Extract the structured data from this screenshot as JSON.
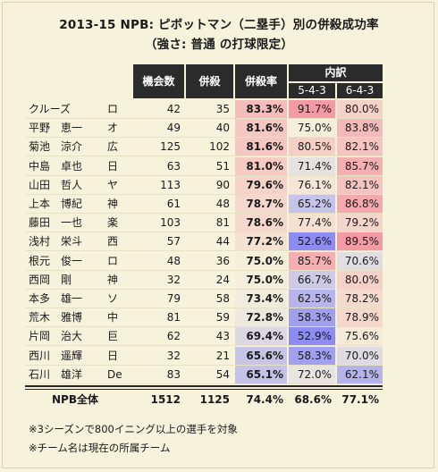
{
  "title_line1": "2013-15 NPB: ピボットマン（二塁手）別の併殺成功率",
  "title_line2": "（強さ: 普通 の打球限定）",
  "chart_data": {
    "type": "table",
    "columns": {
      "opportunities": "機会数",
      "double_plays": "併殺",
      "rate": "併殺率",
      "breakdown": "内訳",
      "sub_543": "5-4-3",
      "sub_643": "6-4-3"
    },
    "rows": [
      {
        "name": "クルーズ",
        "team": "ロ",
        "opp": 42,
        "dp": 35,
        "rate": "83.3%",
        "r543": "91.7%",
        "r643": "80.0%",
        "rate_v": 83.3,
        "r543_v": 91.7,
        "r643_v": 80.0
      },
      {
        "name": "平野　恵一",
        "team": "オ",
        "opp": 49,
        "dp": 40,
        "rate": "81.6%",
        "r543": "75.0%",
        "r643": "83.8%",
        "rate_v": 81.6,
        "r543_v": 75.0,
        "r643_v": 83.8
      },
      {
        "name": "菊池　涼介",
        "team": "広",
        "opp": 125,
        "dp": 102,
        "rate": "81.6%",
        "r543": "80.5%",
        "r643": "82.1%",
        "rate_v": 81.6,
        "r543_v": 80.5,
        "r643_v": 82.1
      },
      {
        "name": "中島　卓也",
        "team": "日",
        "opp": 63,
        "dp": 51,
        "rate": "81.0%",
        "r543": "71.4%",
        "r643": "85.7%",
        "rate_v": 81.0,
        "r543_v": 71.4,
        "r643_v": 85.7
      },
      {
        "name": "山田　哲人",
        "team": "ヤ",
        "opp": 113,
        "dp": 90,
        "rate": "79.6%",
        "r543": "76.1%",
        "r643": "82.1%",
        "rate_v": 79.6,
        "r543_v": 76.1,
        "r643_v": 82.1
      },
      {
        "name": "上本　博紀",
        "team": "神",
        "opp": 61,
        "dp": 48,
        "rate": "78.7%",
        "r543": "65.2%",
        "r643": "86.8%",
        "rate_v": 78.7,
        "r543_v": 65.2,
        "r643_v": 86.8
      },
      {
        "name": "藤田　一也",
        "team": "楽",
        "opp": 103,
        "dp": 81,
        "rate": "78.6%",
        "r543": "77.4%",
        "r643": "79.2%",
        "rate_v": 78.6,
        "r543_v": 77.4,
        "r643_v": 79.2
      },
      {
        "name": "浅村　栄斗",
        "team": "西",
        "opp": 57,
        "dp": 44,
        "rate": "77.2%",
        "r543": "52.6%",
        "r643": "89.5%",
        "rate_v": 77.2,
        "r543_v": 52.6,
        "r643_v": 89.5
      },
      {
        "name": "根元　俊一",
        "team": "ロ",
        "opp": 48,
        "dp": 36,
        "rate": "75.0%",
        "r543": "85.7%",
        "r643": "70.6%",
        "rate_v": 75.0,
        "r543_v": 85.7,
        "r643_v": 70.6
      },
      {
        "name": "西岡　剛",
        "team": "神",
        "opp": 32,
        "dp": 24,
        "rate": "75.0%",
        "r543": "66.7%",
        "r643": "80.0%",
        "rate_v": 75.0,
        "r543_v": 66.7,
        "r643_v": 80.0
      },
      {
        "name": "本多　雄一",
        "team": "ソ",
        "opp": 79,
        "dp": 58,
        "rate": "73.4%",
        "r543": "62.5%",
        "r643": "78.2%",
        "rate_v": 73.4,
        "r543_v": 62.5,
        "r643_v": 78.2
      },
      {
        "name": "荒木　雅博",
        "team": "中",
        "opp": 81,
        "dp": 59,
        "rate": "72.8%",
        "r543": "58.3%",
        "r643": "78.9%",
        "rate_v": 72.8,
        "r543_v": 58.3,
        "r643_v": 78.9
      },
      {
        "name": "片岡　治大",
        "team": "巨",
        "opp": 62,
        "dp": 43,
        "rate": "69.4%",
        "r543": "52.9%",
        "r643": "75.6%",
        "rate_v": 69.4,
        "r543_v": 52.9,
        "r643_v": 75.6
      },
      {
        "name": "西川　遥輝",
        "team": "日",
        "opp": 32,
        "dp": 21,
        "rate": "65.6%",
        "r543": "58.3%",
        "r643": "70.0%",
        "rate_v": 65.6,
        "r543_v": 58.3,
        "r643_v": 70.0
      },
      {
        "name": "石川　雄洋",
        "team": "De",
        "opp": 83,
        "dp": 54,
        "rate": "65.1%",
        "r543": "72.0%",
        "r643": "62.1%",
        "rate_v": 65.1,
        "r543_v": 72.0,
        "r643_v": 62.1
      }
    ],
    "total": {
      "label": "NPB全体",
      "opp": 1512,
      "dp": 1125,
      "rate": "74.4%",
      "r543": "68.6%",
      "r643": "77.1%"
    },
    "color_scale": {
      "low": "#8c8cf2",
      "mid": "#f5f1dd",
      "high": "#f49aa4",
      "midpoint": 74.4
    }
  },
  "notes": [
    "※3シーズンで800イニング以上の選手を対象",
    "※チーム名は現在の所属チーム"
  ]
}
